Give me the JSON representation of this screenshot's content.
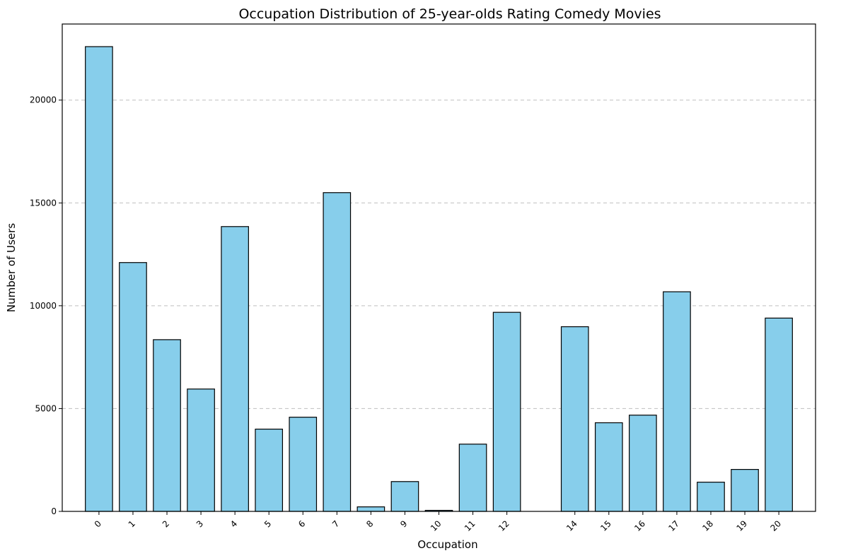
{
  "chart_data": {
    "type": "bar",
    "title": "Occupation Distribution of 25-year-olds Rating Comedy Movies",
    "xlabel": "Occupation",
    "ylabel": "Number of Users",
    "x": [
      0,
      1,
      2,
      3,
      4,
      5,
      6,
      7,
      8,
      9,
      10,
      11,
      12,
      14,
      15,
      16,
      17,
      18,
      19,
      20
    ],
    "categories": [
      "0",
      "1",
      "2",
      "3",
      "4",
      "5",
      "6",
      "7",
      "8",
      "9",
      "10",
      "11",
      "12",
      "14",
      "15",
      "16",
      "17",
      "18",
      "19",
      "20"
    ],
    "values": [
      22600,
      12100,
      8350,
      5950,
      13850,
      4000,
      4580,
      15500,
      220,
      1450,
      50,
      3270,
      9680,
      8980,
      4310,
      4680,
      10680,
      1420,
      2040,
      9400
    ],
    "ylim": [
      0,
      23700
    ],
    "yticks": [
      0,
      5000,
      10000,
      15000,
      20000
    ],
    "ytick_labels": [
      "0",
      "5000",
      "10000",
      "15000",
      "20000"
    ],
    "bar_color": "#87ceeb",
    "edge_color": "#000000",
    "grid": "y-dashed",
    "xtick_rotation": 45
  }
}
